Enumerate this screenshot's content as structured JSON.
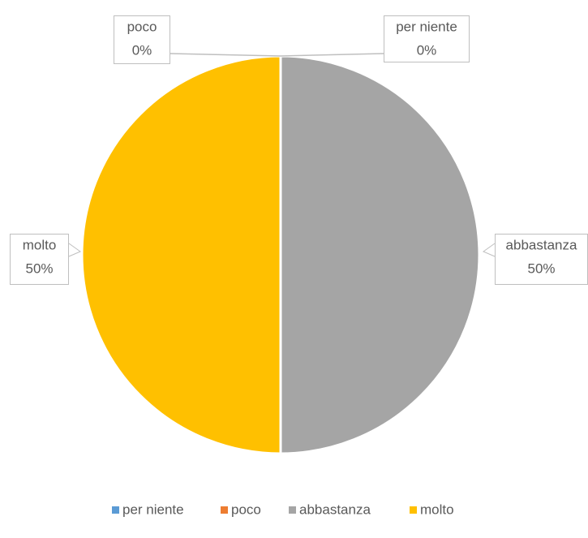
{
  "chart_data": {
    "type": "pie",
    "categories": [
      "per niente",
      "poco",
      "abbastanza",
      "molto"
    ],
    "values": [
      0,
      0,
      50,
      50
    ],
    "value_labels": [
      "0%",
      "0%",
      "50%",
      "50%"
    ],
    "colors": [
      "#5b9bd5",
      "#ed7d31",
      "#a5a5a5",
      "#ffc000"
    ],
    "legend": "bottom"
  }
}
